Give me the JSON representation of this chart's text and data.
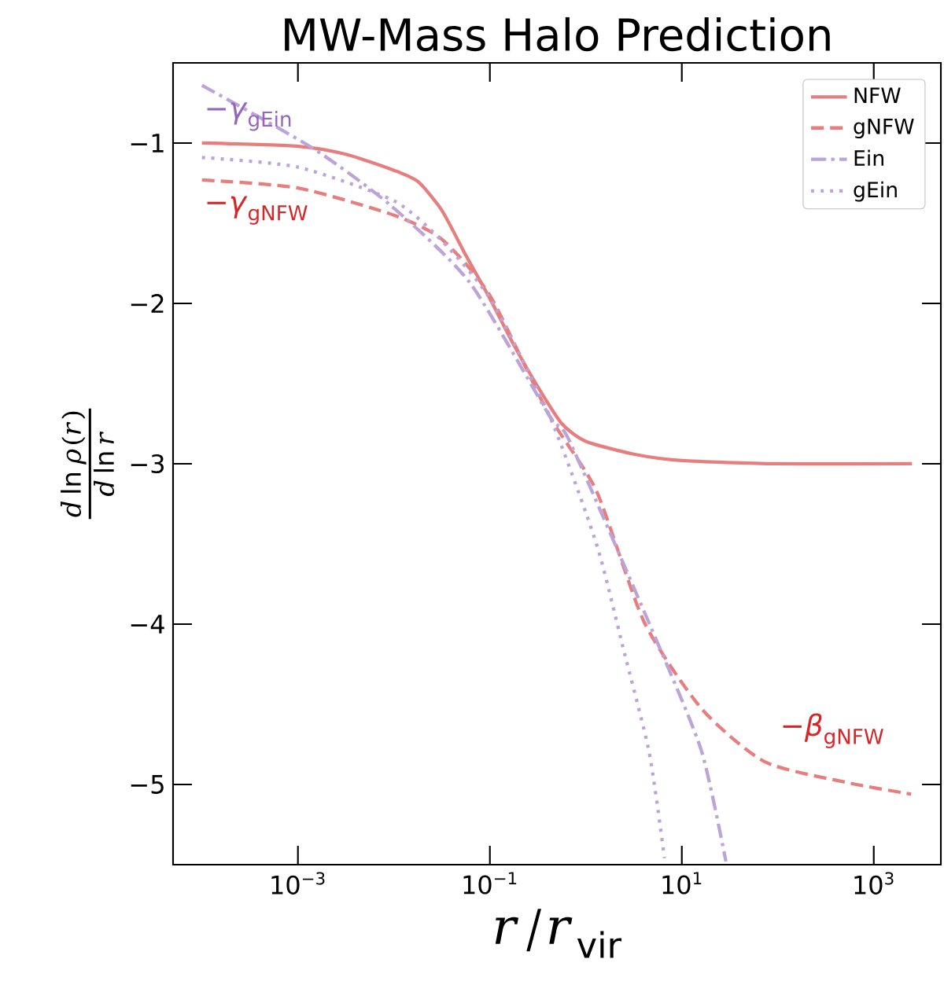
{
  "chart_data": {
    "type": "line",
    "title": "MW-Mass Halo Prediction",
    "xlabel": "r/r_{\\mathrm{vir}}",
    "ylabel": "\\frac{d\\ln\\rho(r)}{d\\ln r}",
    "log": "x",
    "xlim": [
      5e-05,
      5000
    ],
    "ylim": [
      -5.5,
      -0.5
    ],
    "xticks": [
      {
        "value": 0.001,
        "label": "10$^{−3}$"
      },
      {
        "value": 0.1,
        "label": "10$^{−1}$"
      },
      {
        "value": 10,
        "label": "10$^{1}$"
      },
      {
        "value": 1000,
        "label": "10$^{3}$"
      }
    ],
    "yticks": [
      {
        "value": -1,
        "label": "−1"
      },
      {
        "value": -2,
        "label": "−2"
      },
      {
        "value": -3,
        "label": "−3"
      },
      {
        "value": -4,
        "label": "−4"
      },
      {
        "value": -5,
        "label": "−5"
      }
    ],
    "legend": "top right",
    "grid": false,
    "series": [
      {
        "name": "NFW",
        "color": "#e67e7e",
        "line_style": "solid",
        "x": [
          0.0001,
          0.001,
          0.00316,
          0.01,
          0.0178,
          0.0316,
          0.0562,
          0.1,
          0.178,
          0.316,
          0.562,
          1,
          3.16,
          10,
          100,
          2500
        ],
        "values": [
          -1.0,
          -1.02,
          -1.07,
          -1.17,
          -1.24,
          -1.42,
          -1.7,
          -1.97,
          -2.26,
          -2.52,
          -2.75,
          -2.86,
          -2.94,
          -2.98,
          -3.0,
          -3.0
        ]
      },
      {
        "name": "gNFW",
        "color": "#e67e7e",
        "line_style": "dashed",
        "x": [
          0.0001,
          0.001,
          0.01,
          0.0316,
          0.1,
          0.417,
          1.29,
          4.07,
          16.2,
          74,
          550,
          2450
        ],
        "values": [
          -1.23,
          -1.28,
          -1.45,
          -1.6,
          -1.95,
          -2.7,
          -3.17,
          -3.99,
          -4.53,
          -4.86,
          -4.99,
          -5.06
        ]
      },
      {
        "name": "Ein",
        "color": "#bda4d8",
        "line_style": "dashdot",
        "x": [
          0.0001,
          0.00141,
          0.0093,
          0.0617,
          0.417,
          0.69,
          5.9,
          16.2,
          28.8
        ],
        "values": [
          -0.64,
          -1.03,
          -1.39,
          -1.87,
          -2.7,
          -2.87,
          -4.15,
          -4.8,
          -5.48
        ]
      },
      {
        "name": "gEin",
        "color": "#bda4d8",
        "line_style": "dotted",
        "x": [
          0.0001,
          0.001,
          0.01,
          0.0316,
          0.1,
          0.417,
          1.29,
          2.45,
          4.57,
          6.6
        ],
        "values": [
          -1.09,
          -1.15,
          -1.36,
          -1.61,
          -1.97,
          -2.7,
          -3.5,
          -4.15,
          -4.8,
          -5.46
        ]
      }
    ],
    "annotations": [
      "−*γ*$_{gEin}$",
      "−*γ*$_{gNFW}$",
      "−*β*$_{gNFW}$"
    ]
  }
}
